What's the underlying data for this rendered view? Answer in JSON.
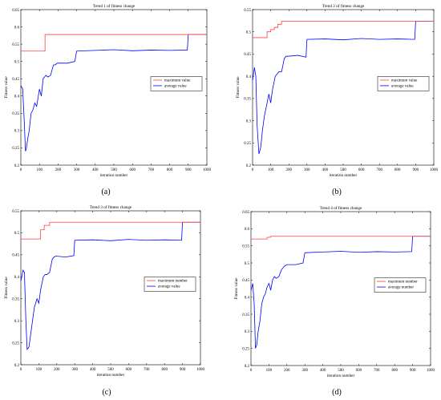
{
  "chart_data": [
    {
      "type": "line",
      "panel_label": "(a)",
      "title": "Trend 1 of fitness change",
      "xlabel": "iteration number",
      "ylabel": "Fitness value",
      "xlim": [
        0,
        1000
      ],
      "ylim": [
        0.2,
        0.65
      ],
      "xticks": [
        0,
        100,
        200,
        300,
        400,
        500,
        600,
        700,
        800,
        900,
        1000
      ],
      "yticks": [
        0.2,
        0.25,
        0.3,
        0.35,
        0.4,
        0.45,
        0.5,
        0.55,
        0.6,
        0.65
      ],
      "legend_position": "right-middle",
      "series": [
        {
          "name": "maximum value",
          "color": "#ff4040",
          "x": [
            0,
            130,
            130,
            900,
            900,
            1000
          ],
          "y": [
            0.53,
            0.53,
            0.578,
            0.578,
            0.578,
            0.578
          ]
        },
        {
          "name": "average value",
          "color": "#0000ff",
          "x": [
            0,
            10,
            18,
            25,
            30,
            38,
            45,
            55,
            65,
            75,
            85,
            100,
            110,
            120,
            135,
            145,
            160,
            175,
            185,
            195,
            250,
            290,
            300,
            400,
            500,
            600,
            700,
            800,
            895,
            900,
            1000
          ],
          "y": [
            0.43,
            0.42,
            0.33,
            0.24,
            0.25,
            0.28,
            0.3,
            0.35,
            0.36,
            0.38,
            0.37,
            0.42,
            0.4,
            0.45,
            0.46,
            0.455,
            0.46,
            0.49,
            0.49,
            0.495,
            0.495,
            0.5,
            0.53,
            0.532,
            0.534,
            0.531,
            0.533,
            0.532,
            0.533,
            0.578,
            0.578
          ]
        }
      ]
    },
    {
      "type": "line",
      "panel_label": "(b)",
      "title": "Trend 2 of fitness change",
      "xlabel": "iteration number",
      "ylabel": "Fitness value",
      "xlim": [
        0,
        1000
      ],
      "ylim": [
        0.2,
        0.55
      ],
      "xticks": [
        0,
        100,
        200,
        300,
        400,
        500,
        600,
        700,
        800,
        900,
        1000
      ],
      "yticks": [
        0.2,
        0.25,
        0.3,
        0.35,
        0.4,
        0.45,
        0.5,
        0.55
      ],
      "legend_position": "right-middle",
      "series": [
        {
          "name": "maximum value",
          "color": "#ff4040",
          "x": [
            0,
            80,
            80,
            100,
            100,
            120,
            120,
            140,
            140,
            160,
            160,
            900,
            900,
            1000
          ],
          "y": [
            0.487,
            0.487,
            0.5,
            0.5,
            0.505,
            0.505,
            0.51,
            0.51,
            0.517,
            0.517,
            0.524,
            0.524,
            0.524,
            0.524
          ]
        },
        {
          "name": "average value",
          "color": "#0000ff",
          "x": [
            0,
            10,
            18,
            25,
            35,
            45,
            55,
            65,
            75,
            90,
            100,
            110,
            125,
            135,
            145,
            160,
            175,
            185,
            195,
            250,
            295,
            300,
            400,
            500,
            600,
            700,
            800,
            895,
            900,
            1000
          ],
          "y": [
            0.39,
            0.42,
            0.4,
            0.29,
            0.225,
            0.24,
            0.28,
            0.31,
            0.33,
            0.36,
            0.34,
            0.37,
            0.4,
            0.405,
            0.41,
            0.41,
            0.44,
            0.445,
            0.445,
            0.447,
            0.443,
            0.483,
            0.484,
            0.482,
            0.485,
            0.483,
            0.484,
            0.483,
            0.524,
            0.524
          ]
        }
      ]
    },
    {
      "type": "line",
      "panel_label": "(c)",
      "title": "Trend 3 of fitness change",
      "xlabel": "iteration number",
      "ylabel": "Fitness value",
      "xlim": [
        0,
        1000
      ],
      "ylim": [
        0.2,
        0.55
      ],
      "xticks": [
        0,
        100,
        200,
        300,
        400,
        500,
        600,
        700,
        800,
        900,
        1000
      ],
      "yticks": [
        0.2,
        0.25,
        0.3,
        0.35,
        0.4,
        0.45,
        0.5,
        0.55
      ],
      "legend_position": "right-middle",
      "series": [
        {
          "name": "maximum number",
          "color": "#ff4040",
          "x": [
            0,
            110,
            110,
            130,
            130,
            160,
            160,
            900,
            900,
            1000
          ],
          "y": [
            0.486,
            0.486,
            0.507,
            0.507,
            0.517,
            0.517,
            0.524,
            0.524,
            0.524,
            0.524
          ]
        },
        {
          "name": "average value",
          "color": "#0000ff",
          "x": [
            0,
            12,
            20,
            28,
            35,
            45,
            55,
            65,
            75,
            90,
            100,
            110,
            125,
            135,
            145,
            160,
            175,
            185,
            195,
            250,
            295,
            300,
            400,
            500,
            600,
            700,
            800,
            895,
            900,
            1000
          ],
          "y": [
            0.39,
            0.415,
            0.41,
            0.3,
            0.235,
            0.24,
            0.27,
            0.3,
            0.33,
            0.35,
            0.34,
            0.37,
            0.4,
            0.405,
            0.405,
            0.41,
            0.44,
            0.445,
            0.447,
            0.445,
            0.448,
            0.483,
            0.484,
            0.482,
            0.485,
            0.483,
            0.484,
            0.483,
            0.524,
            0.524
          ]
        }
      ]
    },
    {
      "type": "line",
      "panel_label": "(d)",
      "title": "Trend 4 of fitness change",
      "xlabel": "iteration number",
      "ylabel": "Fitness value",
      "xlim": [
        0,
        1000
      ],
      "ylim": [
        0.2,
        0.65
      ],
      "xticks": [
        0,
        100,
        200,
        300,
        400,
        500,
        600,
        700,
        800,
        900,
        1000
      ],
      "yticks": [
        0.2,
        0.25,
        0.3,
        0.35,
        0.4,
        0.45,
        0.5,
        0.55,
        0.6,
        0.65
      ],
      "legend_position": "right-middle",
      "series": [
        {
          "name": "maximum number",
          "color": "#ff4040",
          "x": [
            0,
            90,
            90,
            110,
            110,
            900,
            900,
            1000
          ],
          "y": [
            0.57,
            0.57,
            0.575,
            0.575,
            0.578,
            0.578,
            0.578,
            0.578
          ]
        },
        {
          "name": "average number",
          "color": "#0000ff",
          "x": [
            0,
            10,
            18,
            25,
            32,
            40,
            50,
            60,
            70,
            80,
            90,
            100,
            110,
            120,
            130,
            140,
            155,
            170,
            185,
            200,
            250,
            290,
            300,
            400,
            500,
            600,
            700,
            800,
            895,
            900,
            1000
          ],
          "y": [
            0.42,
            0.44,
            0.38,
            0.25,
            0.26,
            0.3,
            0.33,
            0.38,
            0.4,
            0.41,
            0.43,
            0.44,
            0.42,
            0.45,
            0.46,
            0.455,
            0.46,
            0.48,
            0.49,
            0.495,
            0.495,
            0.5,
            0.53,
            0.532,
            0.534,
            0.531,
            0.533,
            0.532,
            0.533,
            0.578,
            0.578
          ]
        }
      ]
    }
  ]
}
